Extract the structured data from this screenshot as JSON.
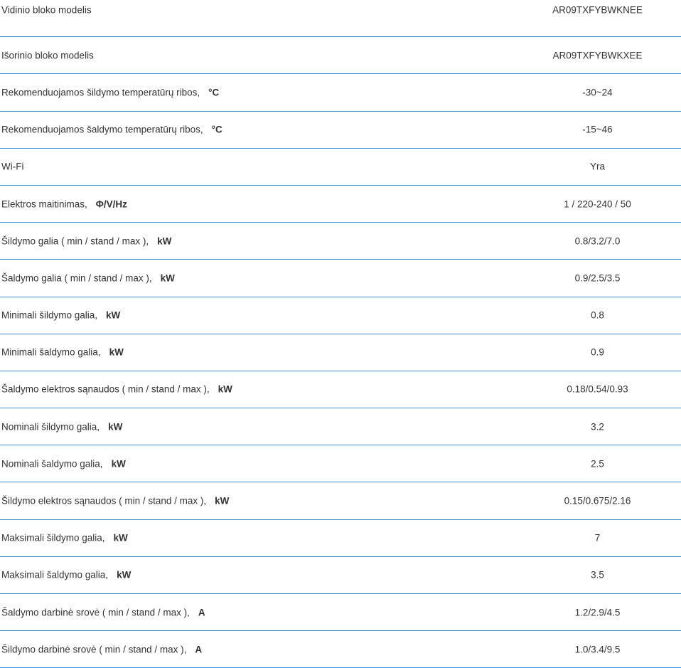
{
  "specs": [
    {
      "label": "Vidinio bloko modelis",
      "unit": "",
      "value": "AR09TXFYBWKNEE"
    },
    {
      "label": "Išorinio bloko modelis",
      "unit": "",
      "value": "AR09TXFYBWKXEE"
    },
    {
      "label": "Rekomenduojamos šildymo temperatūrų ribos,",
      "unit": "°C",
      "value": "-30~24"
    },
    {
      "label": "Rekomenduojamos šaldymo temperatūrų ribos,",
      "unit": "°C",
      "value": "-15~46"
    },
    {
      "label": "Wi-Fi",
      "unit": "",
      "value": "Yra"
    },
    {
      "label": "Elektros maitinimas,",
      "unit": "Φ/V/Hz",
      "value": "1 / 220-240 / 50"
    },
    {
      "label": "Šildymo galia ( min / stand / max ),",
      "unit": "kW",
      "value": "0.8/3.2/7.0"
    },
    {
      "label": "Šaldymo galia ( min / stand / max ),",
      "unit": "kW",
      "value": "0.9/2.5/3.5"
    },
    {
      "label": "Minimali šildymo galia,",
      "unit": "kW",
      "value": "0.8"
    },
    {
      "label": "Minimali šaldymo galia,",
      "unit": "kW",
      "value": "0.9"
    },
    {
      "label": "Šaldymo elektros sąnaudos ( min / stand / max ),",
      "unit": "kW",
      "value": "0.18/0.54/0.93"
    },
    {
      "label": "Nominali šildymo galia,",
      "unit": "kW",
      "value": "3.2"
    },
    {
      "label": "Nominali šaldymo galia,",
      "unit": "kW",
      "value": "2.5"
    },
    {
      "label": "Šildymo elektros sąnaudos ( min / stand / max ),",
      "unit": "kW",
      "value": "0.15/0.675/2.16"
    },
    {
      "label": "Maksimali šildymo galia,",
      "unit": "kW",
      "value": "7"
    },
    {
      "label": "Maksimali šaldymo galia,",
      "unit": "kW",
      "value": "3.5"
    },
    {
      "label": "Šaldymo darbinė srovė ( min / stand / max ),",
      "unit": "A",
      "value": "1.2/2.9/4.5"
    },
    {
      "label": "Šildymo darbinė srovė ( min / stand / max ),",
      "unit": "A",
      "value": "1.0/3.4/9.5"
    }
  ],
  "colors": {
    "divider": "#3d8fd6",
    "text": "#333333"
  }
}
